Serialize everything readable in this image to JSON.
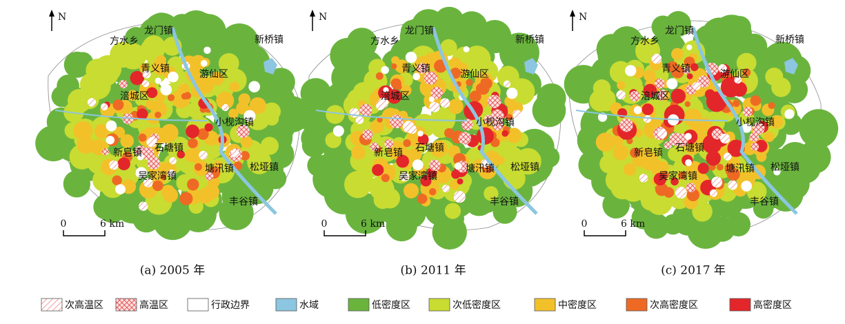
{
  "panels": [
    {
      "caption": "(a) 2005 年",
      "north": "N",
      "scale_start": "0",
      "scale_end": "6 km",
      "places": [
        "龙门镇",
        "方水乡",
        "新桥镇",
        "青义镇",
        "游仙区",
        "涪城区",
        "小枧沟镇",
        "新皂镇",
        "石塘镇",
        "吴家湾镇",
        "塘汛镇",
        "松垭镇",
        "丰谷镇"
      ]
    },
    {
      "caption": "(b) 2011 年",
      "north": "N",
      "scale_start": "0",
      "scale_end": "6 km",
      "places": [
        "龙门镇",
        "方水乡",
        "新桥镇",
        "青义镇",
        "游仙区",
        "涪城区",
        "小枧沟镇",
        "新皂镇",
        "石塘镇",
        "吴家湾镇",
        "塘汛镇",
        "松垭镇",
        "丰谷镇"
      ]
    },
    {
      "caption": "(c) 2017 年",
      "north": "N",
      "scale_start": "0",
      "scale_end": "6 km",
      "places": [
        "龙门镇",
        "方水乡",
        "新桥镇",
        "青义镇",
        "游仙区",
        "涪城区",
        "小枧沟镇",
        "新皂镇",
        "石塘镇",
        "吴家湾镇",
        "塘汛镇",
        "松垭镇",
        "丰谷镇"
      ]
    }
  ],
  "legend": [
    "次高温区",
    "高温区",
    "行政边界",
    "水域",
    "低密度区",
    "次低密度区",
    "中密度区",
    "次高密度区",
    "高密度区"
  ]
}
